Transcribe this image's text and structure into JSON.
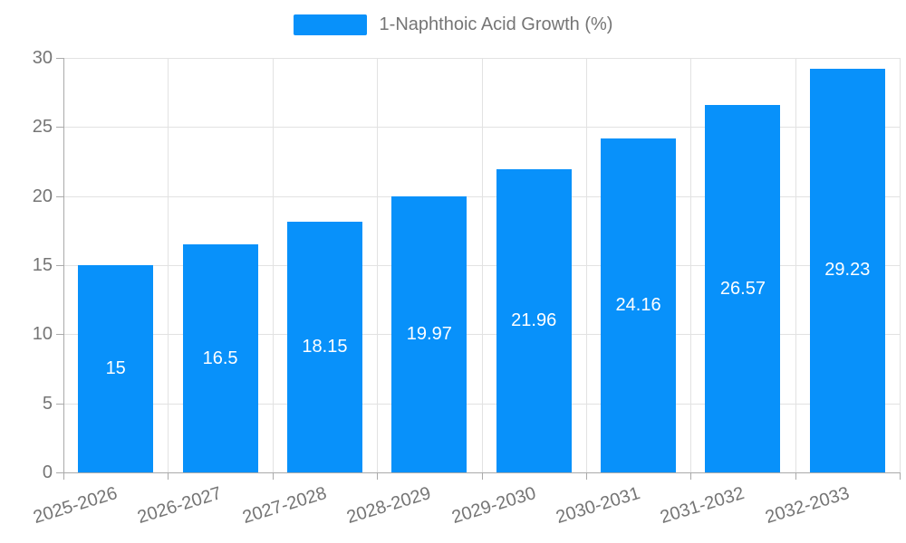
{
  "chart_data": {
    "type": "bar",
    "title": "",
    "legend_label": "1-Naphthoic Acid Growth (%)",
    "legend_position": "top-center",
    "categories": [
      "2025-2026",
      "2026-2027",
      "2027-2028",
      "2028-2029",
      "2029-2030",
      "2030-2031",
      "2031-2032",
      "2032-2033"
    ],
    "series": [
      {
        "name": "1-Naphthoic Acid Growth (%)",
        "values": [
          15,
          16.5,
          18.15,
          19.97,
          21.96,
          24.16,
          26.57,
          29.23
        ]
      }
    ],
    "value_labels": [
      "15",
      "16.5",
      "18.15",
      "19.97",
      "21.96",
      "24.16",
      "26.57",
      "29.23"
    ],
    "xlabel": "",
    "ylabel": "",
    "ylim": [
      0,
      30
    ],
    "yticks": [
      0,
      5,
      10,
      15,
      20,
      25,
      30
    ],
    "grid": true,
    "colors": {
      "bar": "#0891fa",
      "value_label": "#ffffff",
      "axis_text": "#757575",
      "grid_line": "#e2e2e2",
      "axis_line": "#aaaaaa",
      "background": "#ffffff"
    },
    "x_label_rotation_deg": -17
  }
}
